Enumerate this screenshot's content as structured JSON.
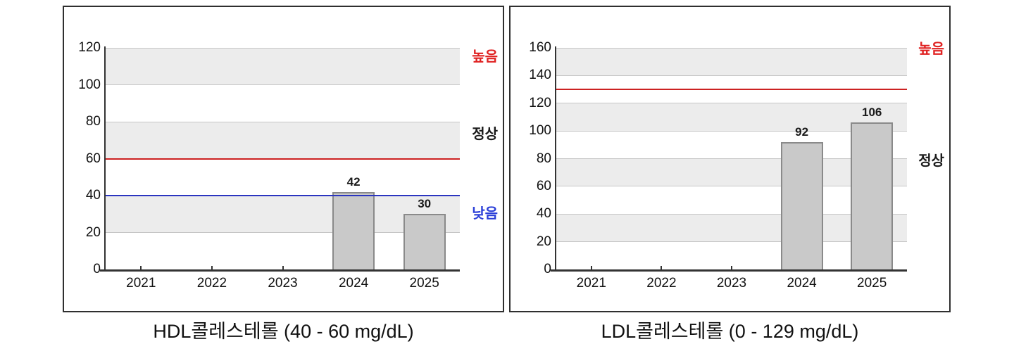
{
  "accent_colors": {
    "high_line": "#cc2222",
    "low_line": "#2b35c0",
    "high_label": "#e02222",
    "normal_label": "#1a1a1a",
    "low_label": "#2b3fd8",
    "bar_fill": "#c9c9c9",
    "bar_border": "#8a8a8a",
    "band_fill": "#ececec"
  },
  "chart_data": [
    {
      "type": "bar",
      "title": "HDL콜레스테롤 (40 - 60 mg/dL)",
      "analyte": "HDL콜레스테롤",
      "reference_range_text": "40 - 60 mg/dL",
      "categories": [
        "2021",
        "2022",
        "2023",
        "2024",
        "2025"
      ],
      "values": [
        null,
        null,
        null,
        42,
        30
      ],
      "ylim": [
        0,
        120
      ],
      "ytick_step": 20,
      "yticks": [
        0,
        20,
        40,
        60,
        80,
        100,
        120
      ],
      "grid": true,
      "band_pattern": "alternating-horizontal",
      "legend": "none",
      "reference_lines": [
        {
          "value": 60,
          "color": "#cc2222",
          "meaning": "upper-normal-limit"
        },
        {
          "value": 40,
          "color": "#2b35c0",
          "meaning": "lower-normal-limit"
        }
      ],
      "zone_labels": [
        {
          "text": "높음",
          "value": 115,
          "color": "#e02222"
        },
        {
          "text": "정상",
          "value": 73,
          "color": "#1a1a1a"
        },
        {
          "text": "낮음",
          "value": 30,
          "color": "#2b3fd8"
        }
      ]
    },
    {
      "type": "bar",
      "title": "LDL콜레스테롤 (0 - 129 mg/dL)",
      "analyte": "LDL콜레스테롤",
      "reference_range_text": "0 - 129 mg/dL",
      "categories": [
        "2021",
        "2022",
        "2023",
        "2024",
        "2025"
      ],
      "values": [
        null,
        null,
        null,
        92,
        106
      ],
      "ylim": [
        0,
        160
      ],
      "ytick_step": 20,
      "yticks": [
        0,
        20,
        40,
        60,
        80,
        100,
        120,
        140,
        160
      ],
      "grid": true,
      "band_pattern": "alternating-horizontal",
      "legend": "none",
      "reference_lines": [
        {
          "value": 130,
          "color": "#cc2222",
          "meaning": "upper-normal-limit"
        }
      ],
      "zone_labels": [
        {
          "text": "높음",
          "value": 159,
          "color": "#e02222"
        },
        {
          "text": "정상",
          "value": 78,
          "color": "#1a1a1a"
        }
      ]
    }
  ]
}
